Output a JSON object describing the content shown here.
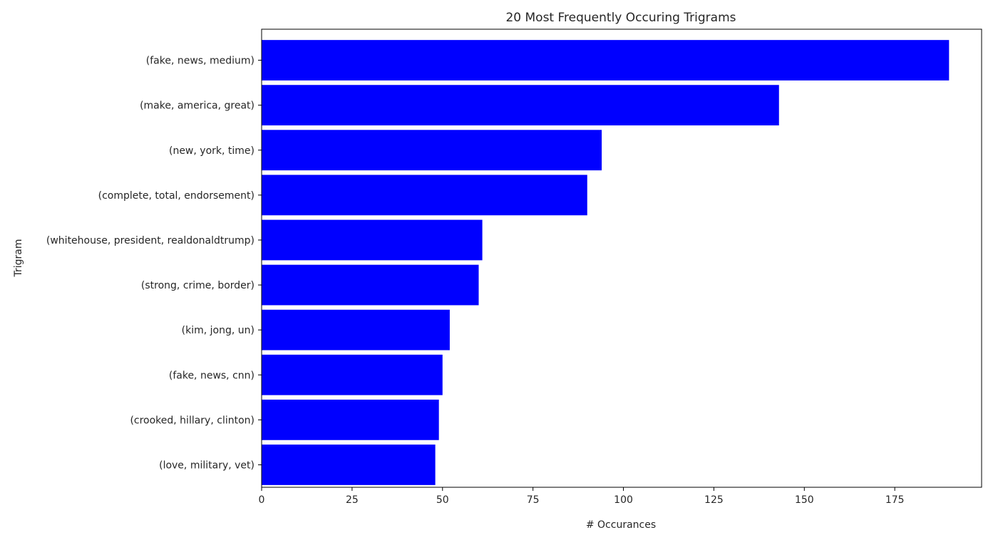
{
  "chart_data": {
    "type": "bar",
    "orientation": "horizontal",
    "title": "20 Most Frequently Occuring Trigrams",
    "xlabel": "# Occurances",
    "ylabel": "Trigram",
    "categories": [
      "(fake, news, medium)",
      "(make, america, great)",
      "(new, york, time)",
      "(complete, total, endorsement)",
      "(whitehouse, president, realdonaldtrump)",
      "(strong, crime, border)",
      "(kim, jong, un)",
      "(fake, news, cnn)",
      "(crooked, hillary, clinton)",
      "(love, military, vet)"
    ],
    "values": [
      190,
      143,
      94,
      90,
      61,
      60,
      52,
      50,
      49,
      48
    ],
    "xlim": [
      0,
      199
    ],
    "xticks": [
      0,
      25,
      50,
      75,
      100,
      125,
      150,
      175
    ],
    "bar_color": "#0000ff",
    "grid": false,
    "legend": "none"
  }
}
